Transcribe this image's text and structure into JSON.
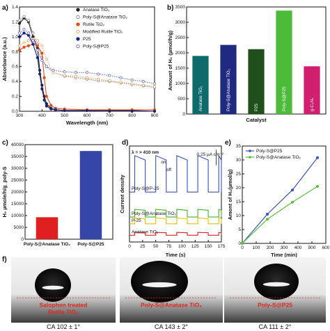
{
  "chart_data": [
    {
      "panel": "a",
      "type": "line",
      "xlabel": "Wavelength (nm)",
      "ylabel": "Absorbance (a.u.)",
      "xlim": [
        300,
        900
      ],
      "ylim": [
        0.0,
        1.4
      ],
      "xticks": [
        "300",
        "400",
        "500",
        "600",
        "700",
        "800",
        "900"
      ],
      "yticks": [
        "0.0",
        "0.2",
        "0.4",
        "0.6",
        "0.8",
        "1.0",
        "1.2",
        "1.4"
      ],
      "legend_position": "top-right",
      "series": [
        {
          "name": "Anatase TiO₂",
          "color": "#222222",
          "marker": "filled",
          "x": [
            300,
            320,
            340,
            360,
            380,
            390,
            400,
            410,
            420,
            440,
            460,
            500,
            600,
            700,
            800,
            900
          ],
          "y": [
            1.18,
            1.25,
            1.2,
            1.0,
            0.85,
            0.55,
            0.35,
            0.2,
            0.1,
            0.04,
            0.02,
            0.01,
            0.01,
            0.01,
            0.01,
            0.0
          ]
        },
        {
          "name": "Poly-S@Anatase TiO₂",
          "color": "#888888",
          "marker": "open",
          "x": [
            300,
            320,
            340,
            360,
            380,
            400,
            420,
            450,
            500,
            550,
            600,
            650,
            700,
            750,
            800,
            850,
            900
          ],
          "y": [
            1.22,
            1.27,
            1.22,
            1.05,
            0.9,
            0.72,
            0.6,
            0.52,
            0.47,
            0.45,
            0.43,
            0.41,
            0.4,
            0.38,
            0.36,
            0.34,
            0.32
          ]
        },
        {
          "name": "Rutile TiO₂",
          "color": "#e64a19",
          "marker": "filled",
          "x": [
            300,
            320,
            340,
            360,
            380,
            400,
            410,
            420,
            440,
            460,
            500,
            600,
            700,
            800,
            900
          ],
          "y": [
            0.82,
            0.86,
            0.88,
            0.9,
            0.88,
            0.78,
            0.45,
            0.2,
            0.08,
            0.04,
            0.03,
            0.02,
            0.02,
            0.02,
            0.02
          ]
        },
        {
          "name": "Modified Rutile TiO₂",
          "color": "#f4a460",
          "marker": "open",
          "x": [
            300,
            320,
            340,
            360,
            380,
            400,
            420,
            450,
            500,
            550,
            600,
            650,
            700,
            750,
            800,
            850,
            900
          ],
          "y": [
            0.88,
            0.92,
            0.95,
            0.97,
            0.95,
            0.88,
            0.7,
            0.52,
            0.48,
            0.47,
            0.45,
            0.43,
            0.41,
            0.39,
            0.37,
            0.35,
            0.33
          ]
        },
        {
          "name": "P25",
          "color": "#1a237e",
          "marker": "filled",
          "x": [
            300,
            320,
            340,
            360,
            380,
            390,
            400,
            410,
            420,
            440,
            460,
            500,
            600,
            700,
            800,
            900
          ],
          "y": [
            1.0,
            1.05,
            1.02,
            0.9,
            0.72,
            0.5,
            0.3,
            0.15,
            0.07,
            0.03,
            0.02,
            0.01,
            0.01,
            0.0,
            0.0,
            0.0
          ]
        },
        {
          "name": "Poly-S@P25",
          "color": "#6a6fd0",
          "marker": "open",
          "x": [
            300,
            320,
            340,
            360,
            380,
            400,
            420,
            450,
            500,
            550,
            600,
            650,
            700,
            750,
            800,
            850,
            900
          ],
          "y": [
            1.05,
            1.1,
            1.05,
            0.95,
            0.82,
            0.68,
            0.6,
            0.55,
            0.53,
            0.52,
            0.52,
            0.5,
            0.48,
            0.45,
            0.42,
            0.4,
            0.37
          ]
        }
      ]
    },
    {
      "panel": "b",
      "type": "bar",
      "xlabel": "Catalyst",
      "ylabel": "Amount of H₂ (µmol/h/g)",
      "ylim": [
        0,
        3500
      ],
      "yticks": [
        "0",
        "500",
        "1000",
        "1500",
        "2000",
        "2500",
        "3000",
        "3500"
      ],
      "categories": [
        "Anatase TiO₂",
        "Poly-S@Anatase TiO₂",
        "P25",
        "Poly-S@P25",
        "g-C₃N₄"
      ],
      "values": [
        1900,
        2260,
        2120,
        3380,
        1560
      ],
      "colors": [
        "#0f6b6b",
        "#1f2a80",
        "#1f4f1a",
        "#4dbb3a",
        "#d21e6e"
      ]
    },
    {
      "panel": "c",
      "type": "bar",
      "ylabel": "H₂ µmole/h/g_poly-S",
      "ylim": [
        0,
        40000
      ],
      "yticks": [
        "0",
        "5000",
        "10000",
        "15000",
        "20000",
        "25000",
        "30000",
        "35000",
        "40000"
      ],
      "categories": [
        "Poly-S@Anatase TiO₂",
        "Poly-S@P25"
      ],
      "values": [
        9300,
        37300
      ],
      "colors": [
        "#e02020",
        "#3545a8"
      ]
    },
    {
      "panel": "d",
      "type": "line",
      "xlabel": "Time (s)",
      "ylabel": "Current density",
      "xlim": [
        0,
        175
      ],
      "xticks": [
        "0",
        "25",
        "50",
        "75",
        "100",
        "125",
        "150",
        "175"
      ],
      "annotations": [
        "λ = > 410 nm",
        "on",
        "off",
        "0.25 µA cm⁻²"
      ],
      "series": [
        {
          "name": "Poly-S@P-25",
          "color": "#3a4fc0",
          "on_level": 0.9,
          "off_level": 0.52
        },
        {
          "name": "Poly-S@Anatase TiO₂",
          "color": "#43b02a",
          "on_level": 0.34,
          "off_level": 0.26
        },
        {
          "name": "P-25",
          "color": "#e3c000",
          "on_level": 0.25,
          "off_level": 0.19
        },
        {
          "name": "Anatase TiO₂",
          "color": "#e02020",
          "on_level": 0.1,
          "off_level": 0.07
        }
      ]
    },
    {
      "panel": "e",
      "type": "line",
      "xlabel": "Time (min)",
      "ylabel": "Amont of H₂(µmol/g)",
      "xlim": [
        0,
        600
      ],
      "ylim": [
        0,
        35
      ],
      "xticks": [
        "0",
        "100",
        "200",
        "300",
        "400",
        "500",
        "600"
      ],
      "yticks": [
        "0",
        "5",
        "10",
        "15",
        "20",
        "25",
        "30",
        "35"
      ],
      "series": [
        {
          "name": "Poly-S@P25",
          "color": "#3a4fc0",
          "x": [
            0,
            180,
            360,
            540
          ],
          "y": [
            0,
            10.5,
            19.2,
            30.8
          ]
        },
        {
          "name": "Poly-S@Anatase TiO₂",
          "color": "#5cbf3c",
          "x": [
            0,
            180,
            360,
            540
          ],
          "y": [
            0,
            8.7,
            14.8,
            20.5
          ]
        }
      ]
    }
  ],
  "panel_labels": [
    "a)",
    "b)",
    "c)",
    "d)",
    "e)",
    "f)"
  ],
  "panel_f": {
    "photos": [
      {
        "caption_lines": [
          "Salophen treated",
          "Rutile TiO₂"
        ],
        "contact_angle": "CA 102 ± 1°"
      },
      {
        "caption_lines": [
          "Poly-S@Anatase TiO₂"
        ],
        "contact_angle": "CA 143 ± 2°"
      },
      {
        "caption_lines": [
          "Poly-S@P25"
        ],
        "contact_angle": "CA 111 ± 2°"
      }
    ]
  }
}
